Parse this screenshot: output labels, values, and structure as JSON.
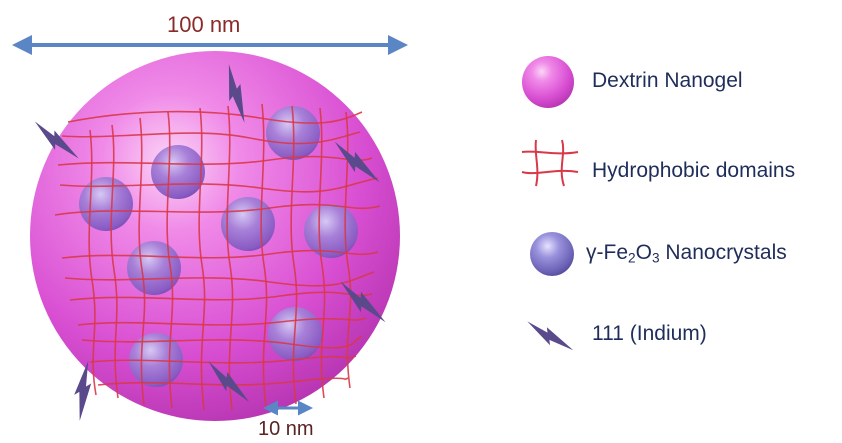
{
  "dimension_labels": {
    "particle_size": "100 nm",
    "crystal_spacing": "10 nm"
  },
  "legend": {
    "nanogel": "Dextrin Nanogel",
    "hydrophobic": "Hydrophobic domains",
    "nanocrystals_prefix": "γ-Fe",
    "nanocrystals_sub1": "2",
    "nanocrystals_mid": "O",
    "nanocrystals_sub2": "3",
    "nanocrystals_suffix": " Nanocrystals",
    "indium": "111 (Indium)"
  },
  "colors": {
    "nanogel": "#e066dc",
    "network_lines": "#d8384a",
    "nanocrystal": "#7a74c0",
    "indium_bolt": "#5a4a8c",
    "size_arrow": "#5b86c6",
    "dimension_text": "#8b2a2a",
    "legend_text": "#1f2d5a"
  },
  "icons": {
    "nanogel": "pink-sphere-icon",
    "hydrophobic": "red-grid-icon",
    "nanocrystal": "purple-sphere-icon",
    "indium": "lightning-bolt-icon"
  }
}
